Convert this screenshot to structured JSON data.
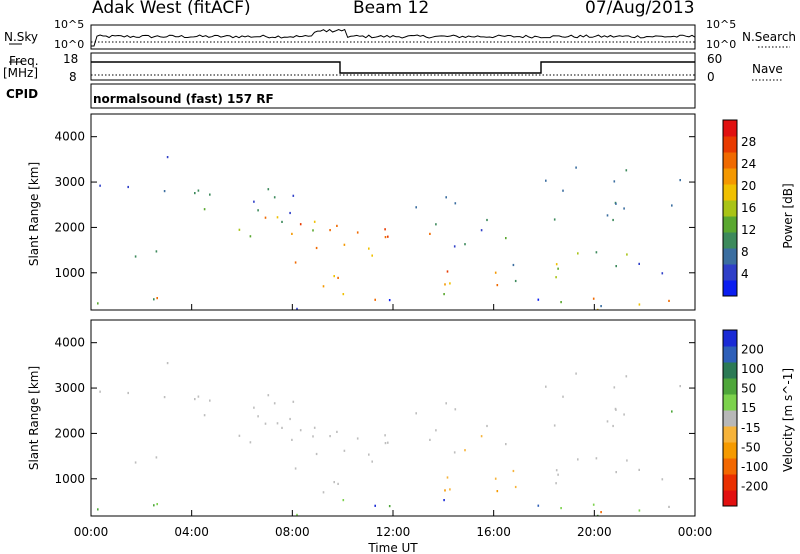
{
  "header": {
    "title": "Adak West (fitACF)",
    "beam": "Beam 12",
    "date": "07/Aug/2013"
  },
  "panels": {
    "nsky_label": "N.Sky",
    "nsearch_label": "N.Search",
    "freq_label_line1": "Freq.",
    "freq_label_line2": "[MHz]",
    "nave_label": "Nave",
    "cpid_label": "CPID",
    "cpid_value": "normalsound (fast) 157 RF",
    "nsky_ticks": [
      "10^5",
      "10^0"
    ],
    "nsearch_ticks": [
      "10^5",
      "10^0"
    ],
    "freq_ticks": [
      "18",
      "8"
    ],
    "nave_ticks": [
      "60",
      "0"
    ]
  },
  "chart_data": [
    {
      "type": "heatmap",
      "name": "power",
      "ylabel": "Slant Range [km]",
      "ylim": [
        180,
        4500
      ],
      "yticks": [
        1000,
        2000,
        3000,
        4000
      ],
      "xlim_hours": [
        0,
        24
      ],
      "colorbar_label": "Power [dB]",
      "colorbar_ticks": [
        4,
        8,
        12,
        16,
        20,
        24,
        28
      ],
      "colorbar_colors": [
        "#0b1ef0",
        "#2f3fc8",
        "#3b6ea0",
        "#3d8a5c",
        "#5aa830",
        "#a9c417",
        "#f0c000",
        "#f49800",
        "#f06a00",
        "#e83a00",
        "#e01010"
      ]
    },
    {
      "type": "heatmap",
      "name": "velocity",
      "ylabel": "Slant Range [km]",
      "xlabel": "Time UT",
      "ylim": [
        180,
        4500
      ],
      "yticks": [
        1000,
        2000,
        3000,
        4000
      ],
      "xticks": [
        "00:00",
        "04:00",
        "08:00",
        "12:00",
        "16:00",
        "20:00",
        "00:00"
      ],
      "colorbar_label": "Velocity [m s^-1]",
      "colorbar_ticks": [
        "200",
        "100",
        "50",
        "15",
        "-15",
        "-50",
        "-100",
        "-200"
      ],
      "colorbar_colors": [
        "#1a2bd6",
        "#2e5fb8",
        "#2c7a55",
        "#4ea63a",
        "#7cd24c",
        "#b8b8b8",
        "#f6b33a",
        "#f59a00",
        "#f36800",
        "#ea3000",
        "#e21010"
      ]
    }
  ],
  "colors": {
    "grey_scatter": "#bdbdbd",
    "axis": "#000000"
  }
}
